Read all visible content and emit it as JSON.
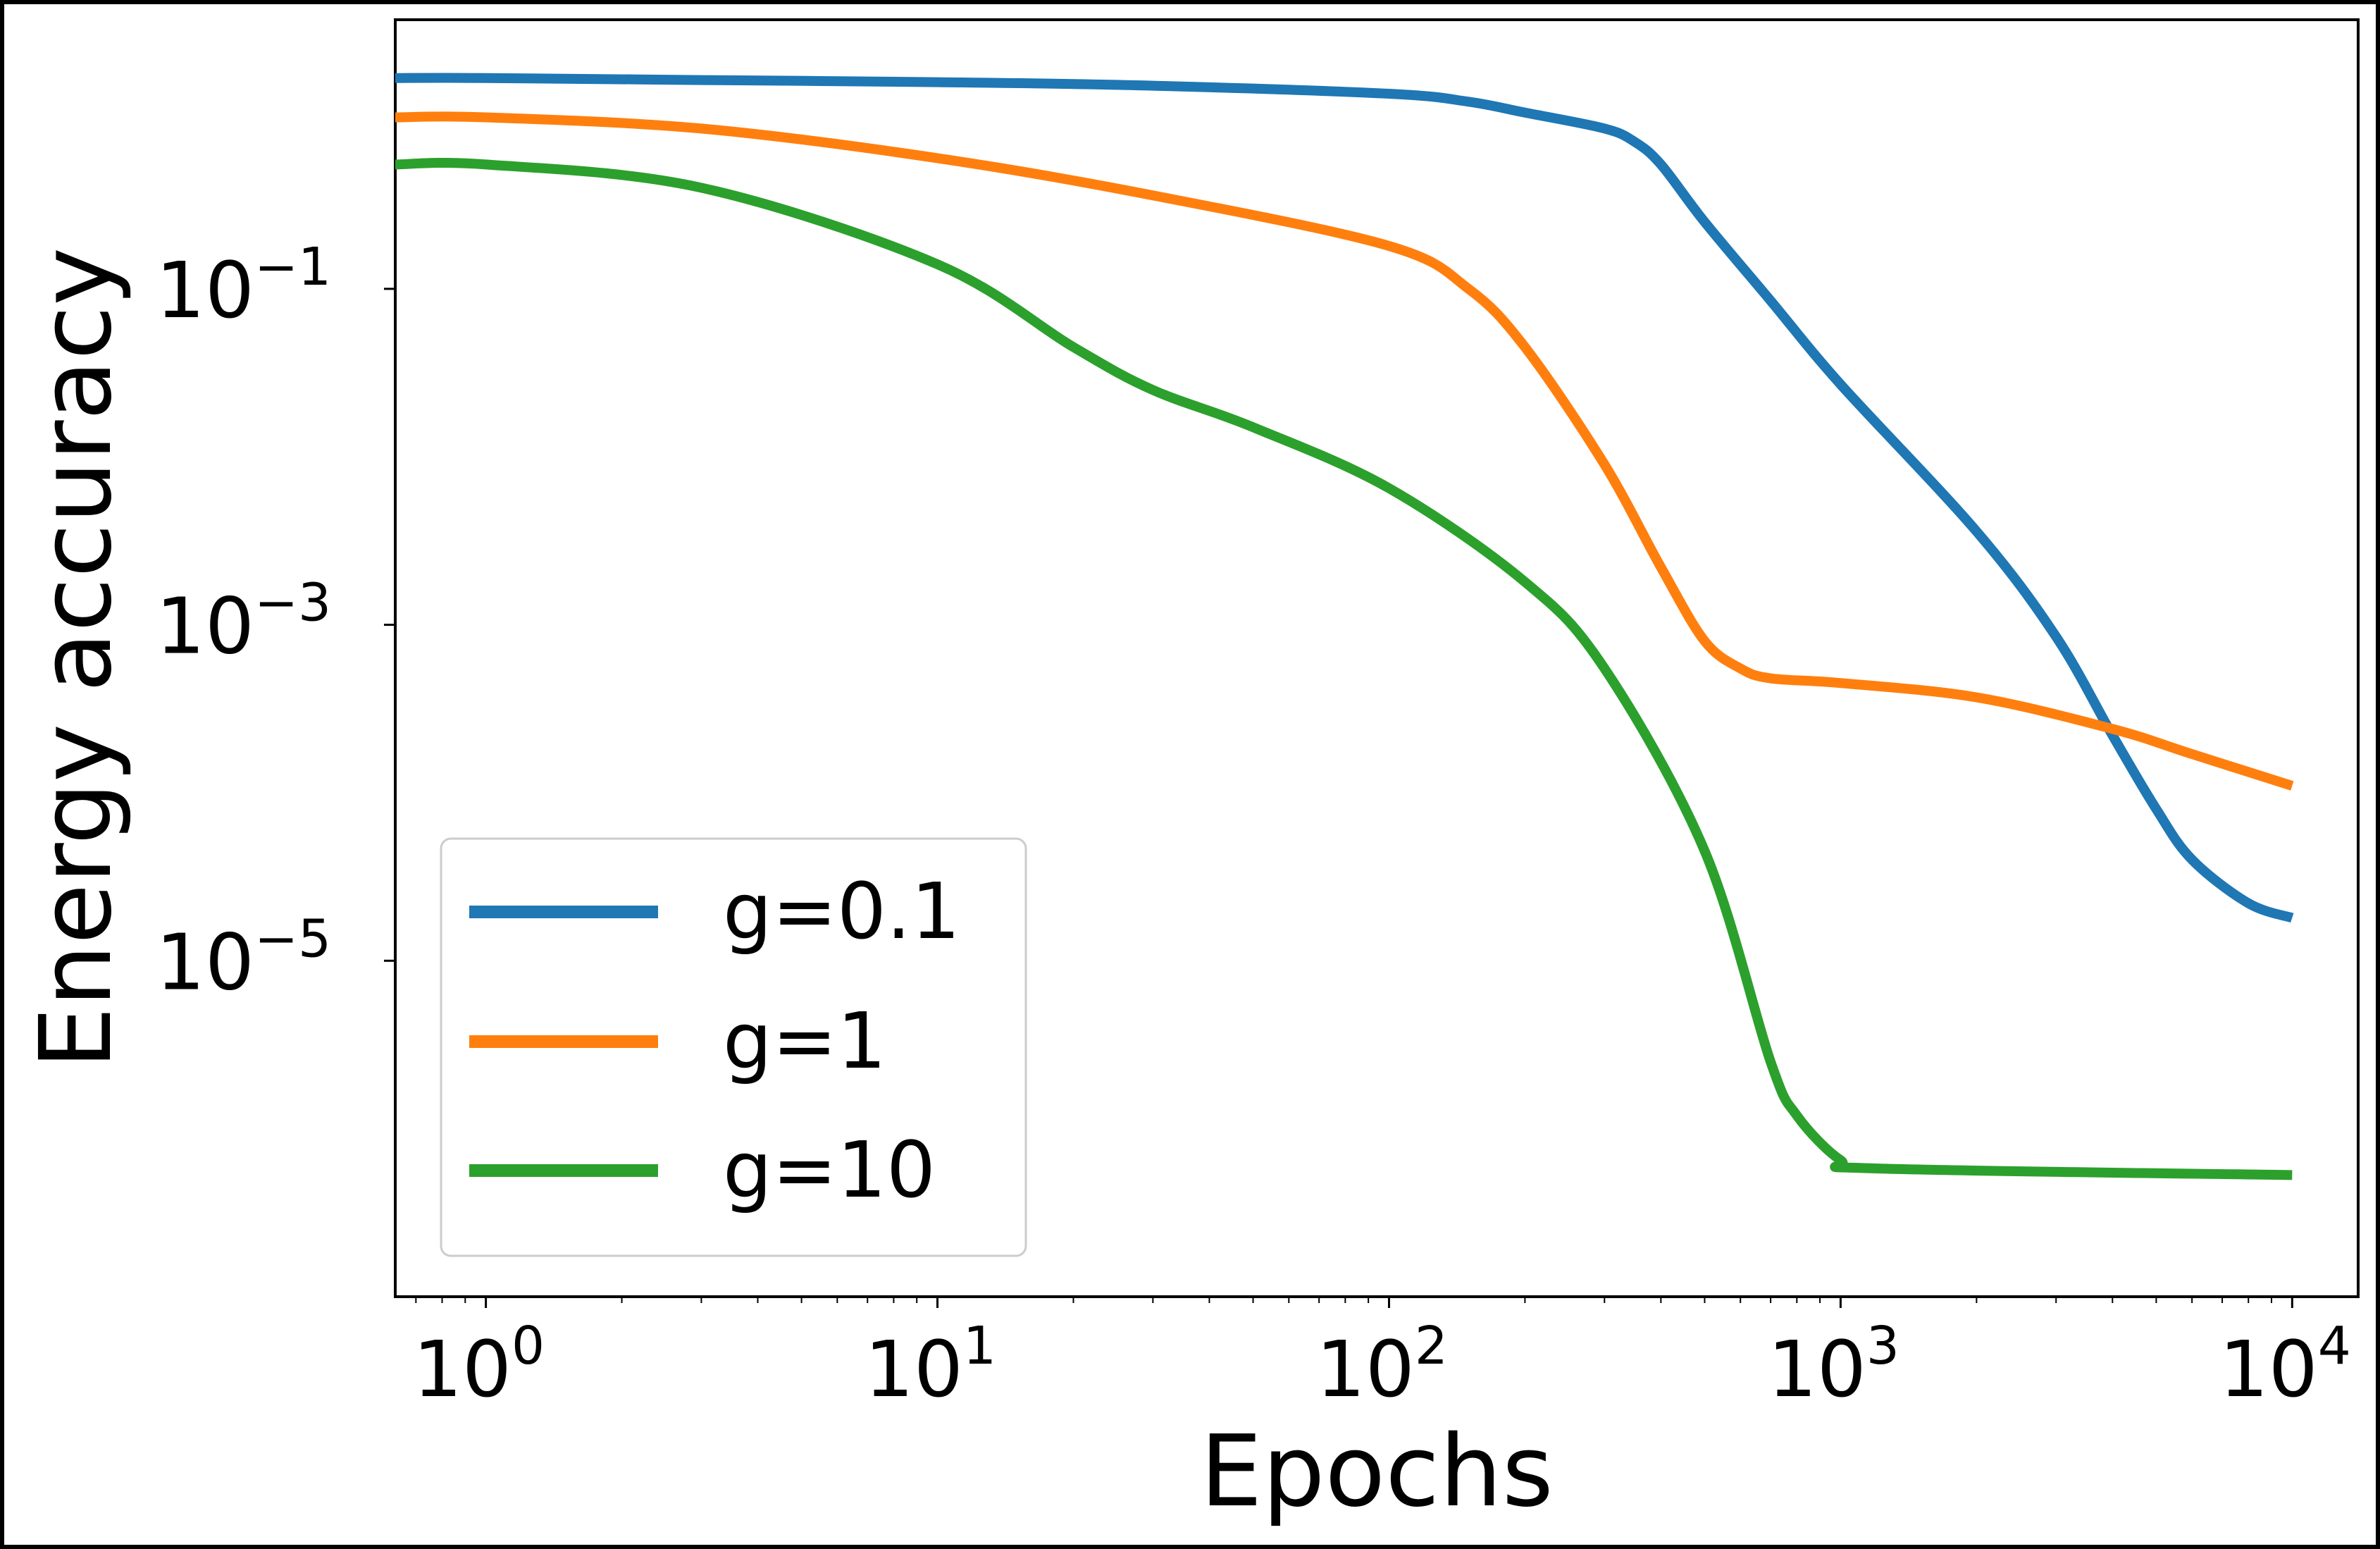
{
  "chart_data": {
    "type": "line",
    "title": "",
    "xlabel": "Epochs",
    "ylabel": "Energy accuracy",
    "xscale": "log",
    "yscale": "log",
    "xlim": [
      0.63,
      14000
    ],
    "ylim": [
      1e-07,
      4
    ],
    "grid": false,
    "legend_position": "lower-left",
    "x_ticks": [
      {
        "value": 1,
        "base": "10",
        "exp": "0"
      },
      {
        "value": 10,
        "base": "10",
        "exp": "1"
      },
      {
        "value": 100,
        "base": "10",
        "exp": "2"
      },
      {
        "value": 1000,
        "base": "10",
        "exp": "3"
      },
      {
        "value": 10000,
        "base": "10",
        "exp": "4"
      }
    ],
    "y_ticks": [
      {
        "value": 0.1,
        "base": "10",
        "exp": "−1"
      },
      {
        "value": 0.001,
        "base": "10",
        "exp": "−3"
      },
      {
        "value": 1e-05,
        "base": "10",
        "exp": "−5"
      }
    ],
    "series": [
      {
        "name": "g=0.1",
        "color": "#1f77b4",
        "x": [
          0.63,
          1,
          3,
          10,
          30,
          100,
          150,
          200,
          300,
          350,
          400,
          500,
          700,
          1000,
          2000,
          3000,
          4000,
          5000,
          6000,
          8000,
          10000
        ],
        "y": [
          1.8,
          1.8,
          1.75,
          1.7,
          1.62,
          1.45,
          1.3,
          1.12,
          0.9,
          0.75,
          0.55,
          0.25,
          0.085,
          0.027,
          0.0036,
          0.00085,
          0.00022,
          8e-05,
          4e-05,
          2.2e-05,
          1.8e-05
        ]
      },
      {
        "name": "g=1",
        "color": "#ff7f0e",
        "x": [
          0.63,
          1,
          3,
          10,
          30,
          100,
          150,
          200,
          300,
          400,
          500,
          600,
          700,
          1000,
          2000,
          4000,
          6000,
          10000
        ],
        "y": [
          1.05,
          1.05,
          0.9,
          0.6,
          0.36,
          0.18,
          0.1,
          0.045,
          0.009,
          0.0022,
          0.0008,
          0.00055,
          0.00048,
          0.00045,
          0.00037,
          0.00024,
          0.00017,
          0.00011
        ]
      },
      {
        "name": "g=10",
        "color": "#2ca02c",
        "x": [
          0.63,
          1,
          3,
          10,
          20,
          30,
          50,
          100,
          200,
          300,
          500,
          700,
          800,
          1000,
          1200,
          10000
        ],
        "y": [
          0.55,
          0.55,
          0.4,
          0.14,
          0.045,
          0.025,
          0.015,
          0.0065,
          0.0018,
          0.00055,
          4.5e-05,
          2.5e-06,
          1.2e-06,
          6.5e-07,
          5.8e-07,
          5.3e-07
        ]
      }
    ]
  }
}
